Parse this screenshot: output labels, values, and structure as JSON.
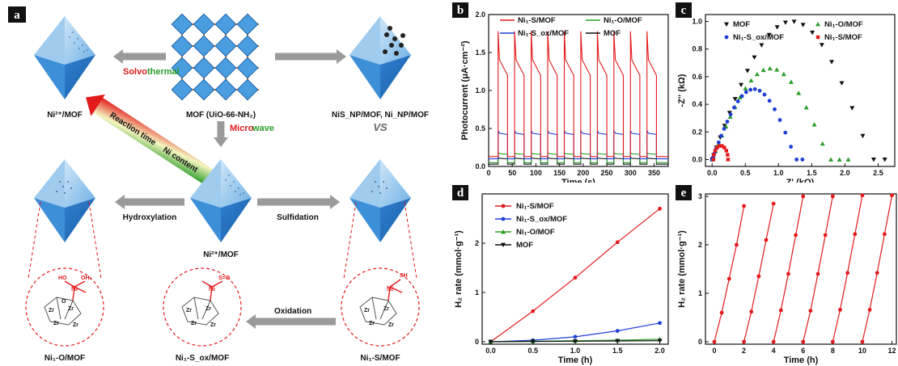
{
  "colors": {
    "red": "#e31a1c",
    "blue": "#1f3fd6",
    "green": "#2a9d2a",
    "black": "#111111",
    "mof_blue": "#3b8fd6",
    "orange": "#d77a1e"
  },
  "panels": {
    "a": "a",
    "b": "b",
    "c": "c",
    "d": "d",
    "e": "e"
  },
  "schematic": {
    "solvothermal_1": "Solvo",
    "solvothermal_2": "thermal",
    "microwave_1": "Micro",
    "microwave_2": "wave",
    "reaction_time": "Reaction time",
    "ni_content": "Ni content",
    "vs": "VS",
    "hydroxylation": "Hydroxylation",
    "sulfidation": "Sulfidation",
    "oxidation": "Oxidation",
    "ni2_mof_top": "Ni²⁺/MOF",
    "mof_name": "MOF (UiO-66-NH₂)",
    "np_mof": "NiS_NP/MOF, Ni_NP/MOF",
    "ni2_mof_mid": "Ni²⁺/MOF",
    "ni1o": "Ni₁-O/MOF",
    "ni1sox": "Ni₁-S_ox/MOF",
    "ni1s": "Ni₁-S/MOF"
  },
  "chart_data": [
    {
      "panel": "b",
      "type": "line",
      "xlabel": "Time (s)",
      "ylabel": "Photocurrent (μA·cm⁻²)",
      "xlim": [
        0,
        380
      ],
      "ylim": [
        0,
        2.0
      ],
      "xticks": [
        0,
        50,
        100,
        150,
        200,
        250,
        300,
        350
      ],
      "yticks": [
        0.0,
        0.5,
        1.0,
        1.5,
        2.0
      ],
      "light_on_times": [
        20,
        55,
        90,
        125,
        160,
        195,
        230,
        265,
        300,
        335
      ],
      "light_on_duration": 20,
      "series": [
        {
          "name": "Ni₁-S/MOF",
          "color": "#e31a1c",
          "off": 0.13,
          "spike": 1.78,
          "plateau": 1.2
        },
        {
          "name": "Ni₁-O/MOF",
          "color": "#2a9d2a",
          "off": 0.05,
          "spike": 0.18,
          "plateau": 0.16
        },
        {
          "name": "Ni₁-S_ox/MOF",
          "color": "#1f3fd6",
          "off": 0.1,
          "spike": 0.47,
          "plateau": 0.42
        },
        {
          "name": "MOF",
          "color": "#111111",
          "off": 0.03,
          "spike": 0.12,
          "plateau": 0.1
        }
      ]
    },
    {
      "panel": "c",
      "type": "scatter",
      "xlabel": "Z' (kΩ)",
      "ylabel": "-Z'' (kΩ)",
      "xlim": [
        -0.1,
        2.75
      ],
      "ylim": [
        -0.05,
        1.05
      ],
      "xticks": [
        0.0,
        0.5,
        1.0,
        1.5,
        2.0,
        2.5
      ],
      "yticks": [
        0.0,
        0.2,
        0.4,
        0.6,
        0.8,
        1.0
      ],
      "series": [
        {
          "name": "MOF",
          "color": "#111111",
          "marker": "tri-down",
          "center": 1.2,
          "radius": 1.2,
          "top": 1.0,
          "xmax": 2.6
        },
        {
          "name": "Ni₁-O/MOF",
          "color": "#2a9d2a",
          "marker": "tri-up",
          "center": 0.88,
          "radius": 0.88,
          "top": 0.66,
          "xmax": 2.05
        },
        {
          "name": "Ni₁-S_ox/MOF",
          "color": "#1f3fd6",
          "marker": "circle",
          "center": 0.63,
          "radius": 0.63,
          "top": 0.51,
          "xmax": 1.36
        },
        {
          "name": "Ni₁-S/MOF",
          "color": "#e31a1c",
          "marker": "square",
          "center": 0.13,
          "radius": 0.11,
          "top": 0.1,
          "xmax": 0.24
        }
      ]
    },
    {
      "panel": "d",
      "type": "line",
      "xlabel": "Time (h)",
      "ylabel": "H₂ rate (mmol·g⁻¹)",
      "xlim": [
        -0.1,
        2.1
      ],
      "ylim": [
        -0.05,
        3.0
      ],
      "xticks": [
        0.0,
        0.5,
        1.0,
        1.5,
        2.0
      ],
      "yticks": [
        0,
        1,
        2
      ],
      "x": [
        0,
        0.5,
        1.0,
        1.5,
        2.0
      ],
      "series": [
        {
          "name": "Ni₁-S/MOF",
          "color": "#e31a1c",
          "marker": "circle",
          "values": [
            0,
            0.62,
            1.3,
            2.02,
            2.7
          ]
        },
        {
          "name": "Ni₁-S_ox/MOF",
          "color": "#1f3fd6",
          "marker": "circle",
          "values": [
            0,
            0.03,
            0.1,
            0.22,
            0.38
          ]
        },
        {
          "name": "Ni₁-O/MOF",
          "color": "#2a9d2a",
          "marker": "tri-up",
          "values": [
            0,
            0.01,
            0.02,
            0.03,
            0.05
          ]
        },
        {
          "name": "MOF",
          "color": "#111111",
          "marker": "tri-down",
          "values": [
            0,
            0.005,
            0.01,
            0.015,
            0.02
          ]
        }
      ]
    },
    {
      "panel": "e",
      "type": "line",
      "xlabel": "Time (h)",
      "ylabel": "H₂ rate (mmol·g⁻¹)",
      "xlim": [
        -0.6,
        12.3
      ],
      "ylim": [
        -0.05,
        3.05
      ],
      "xticks": [
        0,
        2,
        4,
        6,
        8,
        10,
        12
      ],
      "yticks": [
        0,
        1,
        2,
        3
      ],
      "series": [
        {
          "name": "cycle1",
          "color": "#e31a1c",
          "x": [
            0,
            0.5,
            1,
            1.5,
            2
          ],
          "values": [
            0,
            0.6,
            1.3,
            2.0,
            2.8
          ]
        },
        {
          "name": "cycle2",
          "color": "#e31a1c",
          "x": [
            2,
            2.5,
            3,
            3.5,
            4
          ],
          "values": [
            0,
            0.62,
            1.35,
            2.1,
            2.85
          ]
        },
        {
          "name": "cycle3",
          "color": "#e31a1c",
          "x": [
            4,
            4.5,
            5,
            5.5,
            6
          ],
          "values": [
            0,
            0.65,
            1.4,
            2.2,
            3.0
          ]
        },
        {
          "name": "cycle4",
          "color": "#e31a1c",
          "x": [
            6,
            6.5,
            7,
            7.5,
            8
          ],
          "values": [
            0,
            0.64,
            1.4,
            2.2,
            3.0
          ]
        },
        {
          "name": "cycle5",
          "color": "#e31a1c",
          "x": [
            8,
            8.5,
            9,
            9.5,
            10
          ],
          "values": [
            0,
            0.66,
            1.42,
            2.22,
            3.02
          ]
        },
        {
          "name": "cycle6",
          "color": "#e31a1c",
          "x": [
            10,
            10.5,
            11,
            11.5,
            12
          ],
          "values": [
            0,
            0.66,
            1.42,
            2.22,
            3.02
          ]
        }
      ]
    }
  ]
}
